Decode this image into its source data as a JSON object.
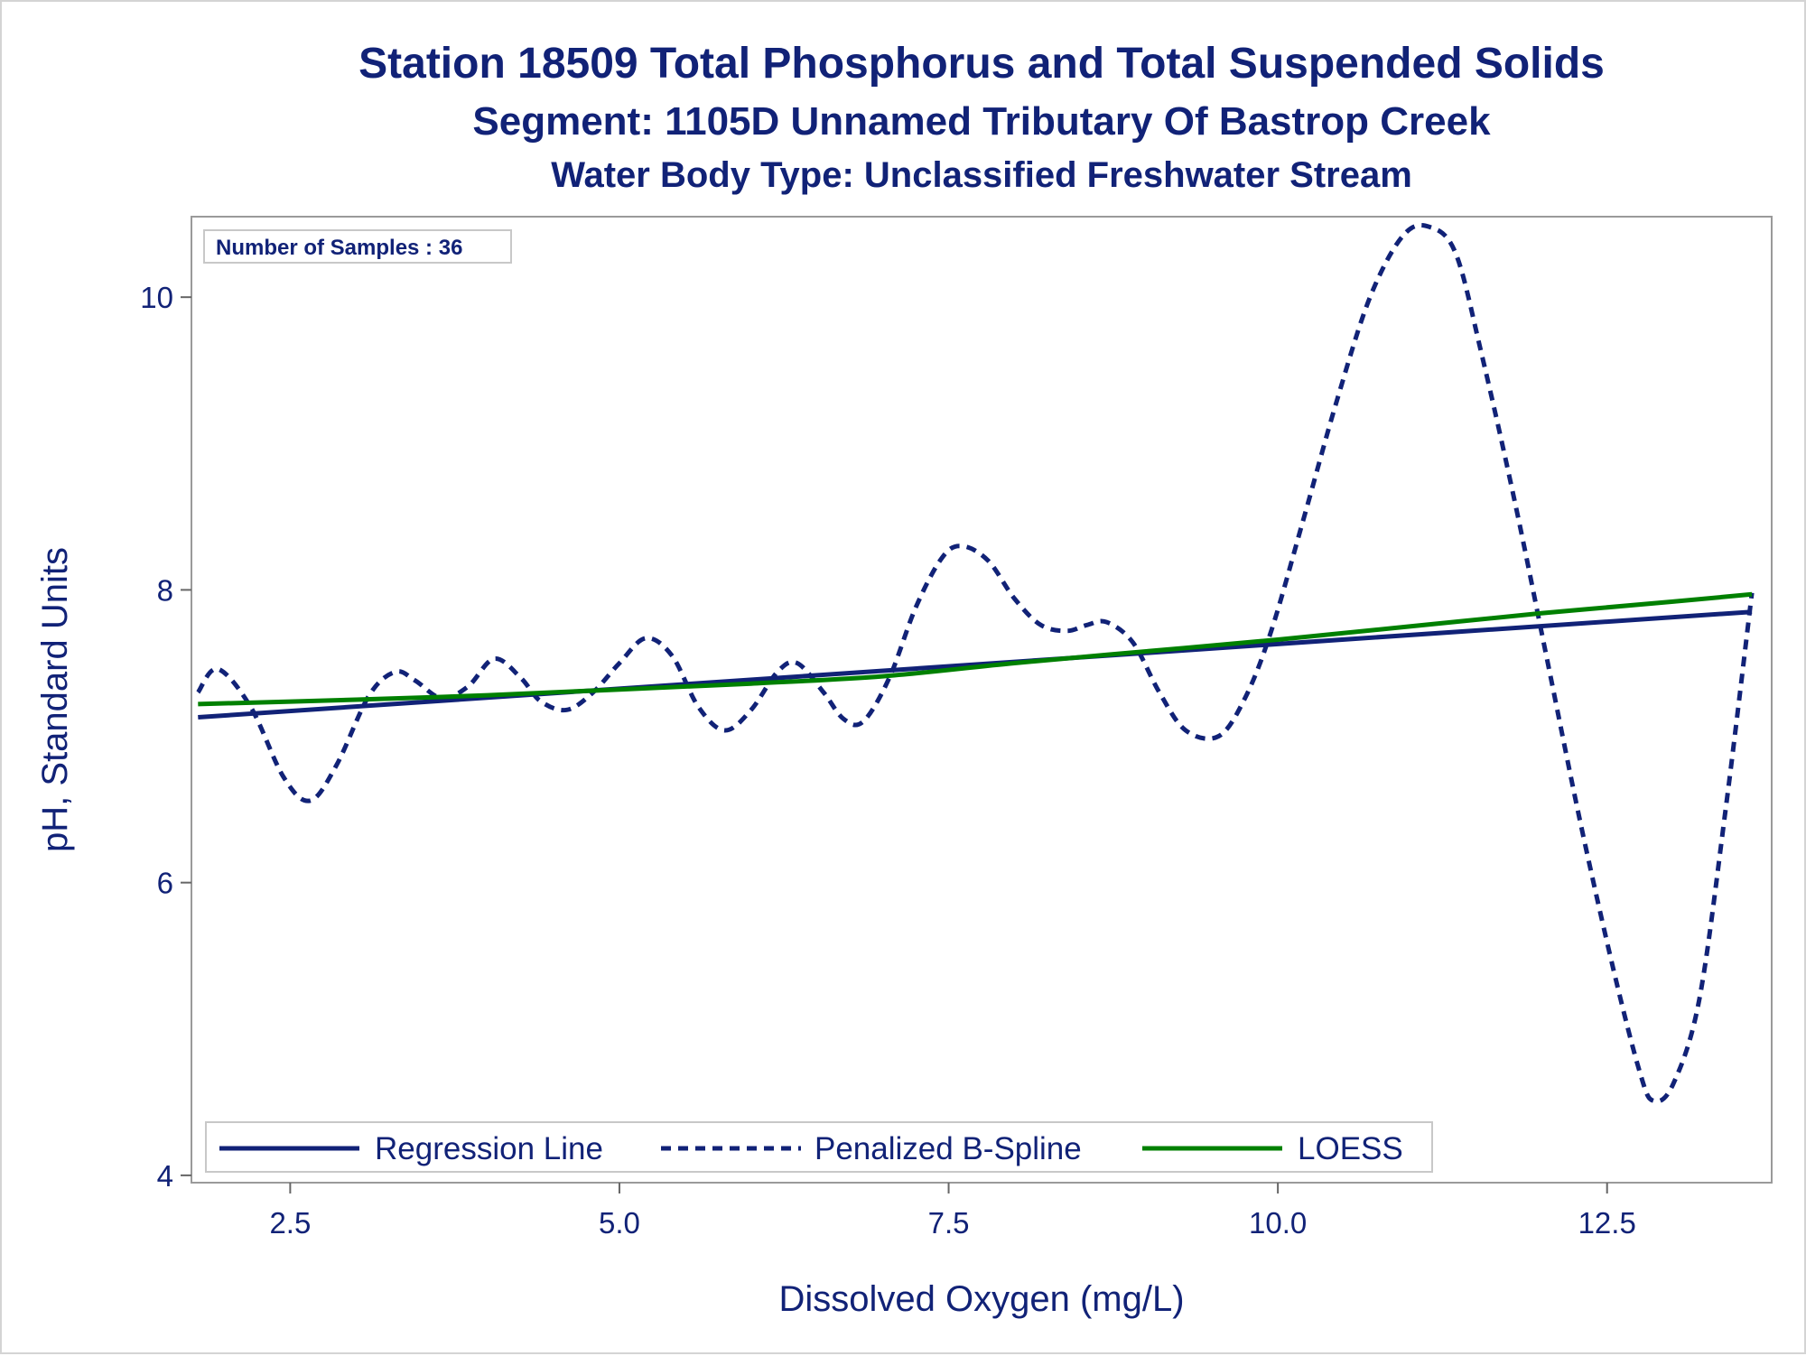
{
  "chart_data": {
    "type": "line",
    "title": "Station 18509  Total Phosphorus and Total Suspended Solids",
    "subtitle": "Segment: 1105D  Unnamed Tributary Of Bastrop Creek",
    "subtitle2": "Water Body Type: Unclassified Freshwater Stream",
    "xlabel": "Dissolved Oxygen (mg/L)",
    "ylabel": "pH, Standard Units",
    "xlim": [
      1.75,
      13.75
    ],
    "ylim": [
      3.95,
      10.55
    ],
    "x_ticks": [
      2.5,
      5.0,
      7.5,
      10.0,
      12.5
    ],
    "x_tick_labels": [
      "2.5",
      "5.0",
      "7.5",
      "10.0",
      "12.5"
    ],
    "y_ticks": [
      4,
      6,
      8,
      10
    ],
    "y_tick_labels": [
      "4",
      "6",
      "8",
      "10"
    ],
    "grid": false,
    "legend_position": "bottom-inside",
    "inset_label": "Number of Samples : 36",
    "series": [
      {
        "name": "Regression Line",
        "style": "solid",
        "color": "#112277",
        "x": [
          1.8,
          13.6
        ],
        "y": [
          7.13,
          7.85
        ]
      },
      {
        "name": "Penalized B-Spline",
        "style": "dashed",
        "color": "#112277",
        "x": [
          1.8,
          1.95,
          2.2,
          2.45,
          2.65,
          2.85,
          3.1,
          3.3,
          3.45,
          3.65,
          3.85,
          4.05,
          4.25,
          4.4,
          4.6,
          4.8,
          5.0,
          5.2,
          5.4,
          5.6,
          5.8,
          6.0,
          6.2,
          6.35,
          6.55,
          6.7,
          6.85,
          7.05,
          7.25,
          7.45,
          7.6,
          7.8,
          8.0,
          8.2,
          8.4,
          8.55,
          8.7,
          8.9,
          9.1,
          9.3,
          9.55,
          9.75,
          9.95,
          10.2,
          10.45,
          10.7,
          10.95,
          11.15,
          11.35,
          11.55,
          11.8,
          12.05,
          12.3,
          12.55,
          12.75,
          12.85,
          13.0,
          13.2,
          13.4,
          13.6
        ],
        "y": [
          7.3,
          7.46,
          7.2,
          6.72,
          6.56,
          6.8,
          7.28,
          7.44,
          7.38,
          7.26,
          7.34,
          7.53,
          7.4,
          7.24,
          7.18,
          7.3,
          7.5,
          7.67,
          7.55,
          7.2,
          7.04,
          7.18,
          7.44,
          7.5,
          7.3,
          7.12,
          7.1,
          7.4,
          7.88,
          8.22,
          8.3,
          8.2,
          7.94,
          7.76,
          7.72,
          7.76,
          7.78,
          7.64,
          7.3,
          7.04,
          7.0,
          7.26,
          7.72,
          8.5,
          9.3,
          10.0,
          10.42,
          10.48,
          10.3,
          9.6,
          8.6,
          7.5,
          6.4,
          5.4,
          4.7,
          4.51,
          4.62,
          5.2,
          6.5,
          7.98
        ]
      },
      {
        "name": "LOESS",
        "style": "solid",
        "color": "#008000",
        "x": [
          1.8,
          3.0,
          4.0,
          5.0,
          6.0,
          7.0,
          8.0,
          9.0,
          10.0,
          11.0,
          12.0,
          13.0,
          13.6
        ],
        "y": [
          7.22,
          7.25,
          7.28,
          7.32,
          7.36,
          7.41,
          7.5,
          7.58,
          7.66,
          7.75,
          7.84,
          7.92,
          7.97
        ]
      }
    ]
  }
}
